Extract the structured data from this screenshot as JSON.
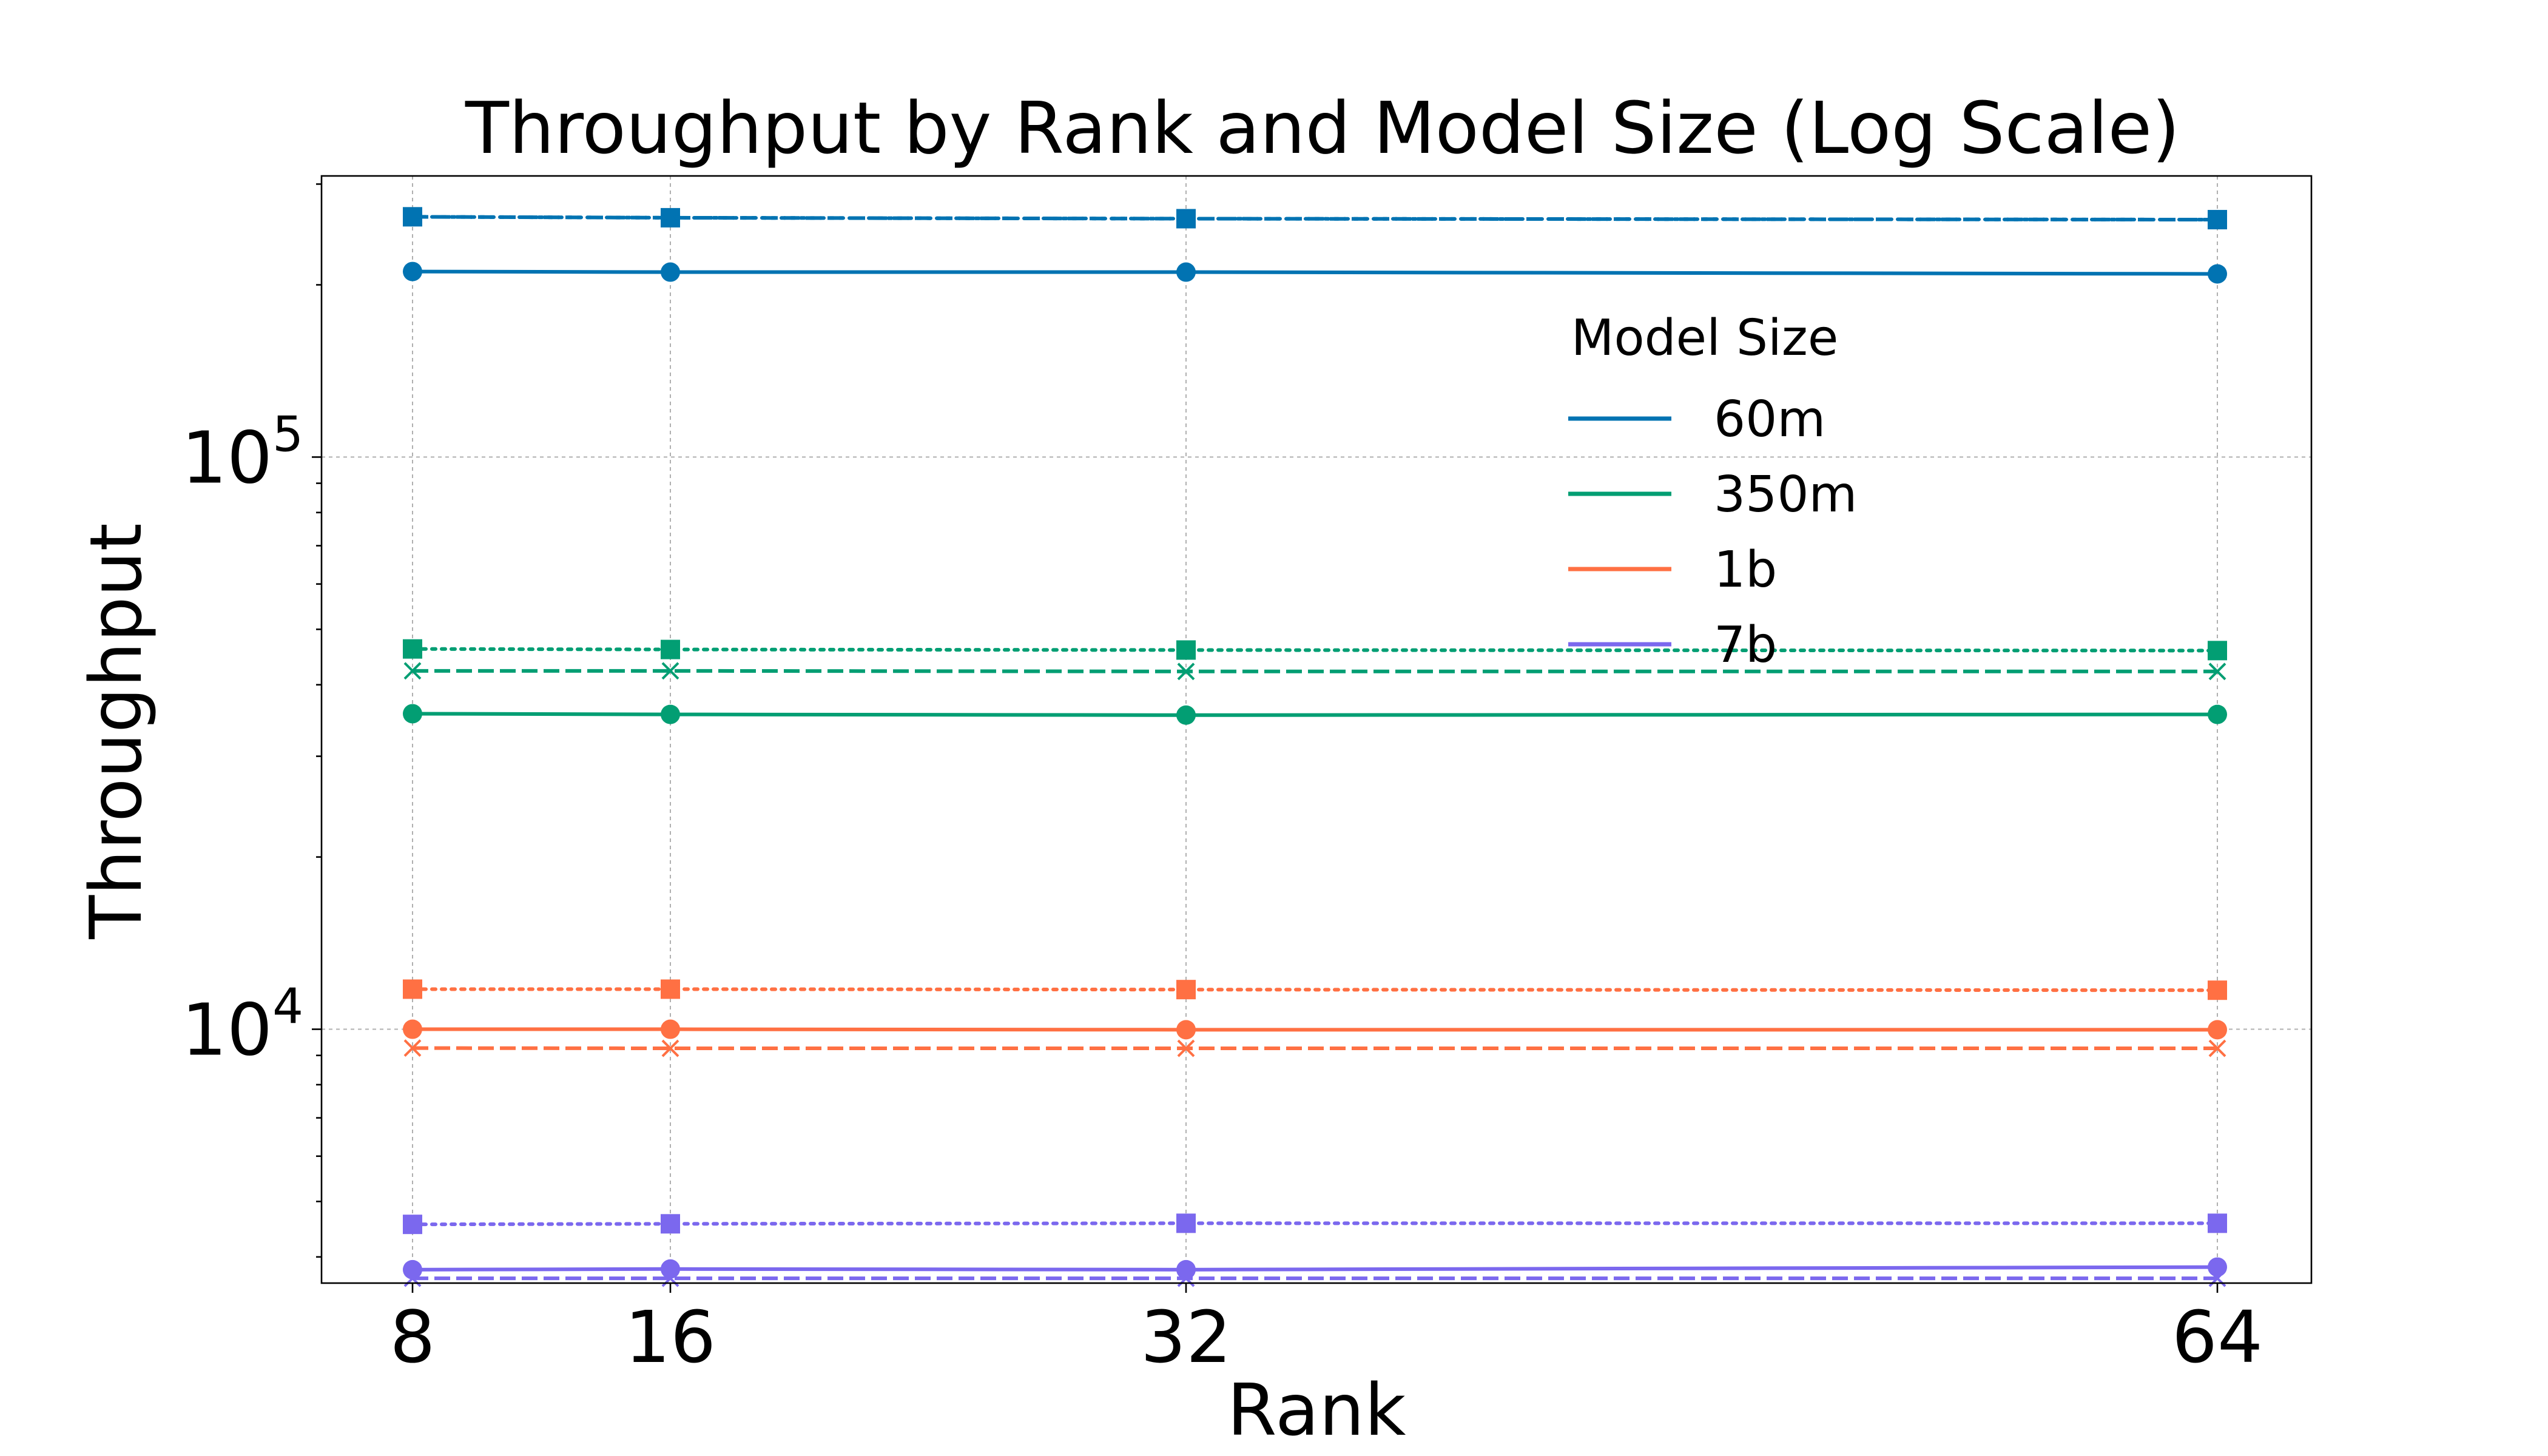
{
  "chart_data": {
    "type": "line",
    "title": "Throughput by Rank and Model Size (Log Scale)",
    "xlabel": "Rank",
    "ylabel": "Throughput",
    "x": [
      8,
      16,
      32,
      64
    ],
    "x_tick_labels": [
      "8",
      "16",
      "32",
      "64"
    ],
    "y_scale": "log",
    "ylim": [
      3600,
      310000
    ],
    "y_ticks": [
      {
        "value": 10000,
        "base": "10",
        "exp": "4"
      },
      {
        "value": 100000,
        "base": "10",
        "exp": "5"
      }
    ],
    "grid": true,
    "legend": {
      "title": "Model Size",
      "placement": "upper right inside",
      "entries": [
        "60m",
        "350m",
        "1b",
        "7b"
      ]
    },
    "groups": [
      {
        "name": "60m",
        "color": "#0173b2",
        "lines": [
          {
            "style": "solid",
            "marker": "circle",
            "values": [
              211000,
              210500,
              210500,
              209000
            ]
          },
          {
            "style": "dotted",
            "marker": "square",
            "values": [
              263000,
              262000,
              261000,
              260000
            ]
          },
          {
            "style": "dashed",
            "marker": "x",
            "values": [
              263000,
              262000,
              261000,
              260000
            ]
          }
        ]
      },
      {
        "name": "350m",
        "color": "#029e73",
        "lines": [
          {
            "style": "solid",
            "marker": "circle",
            "values": [
              35600,
              35500,
              35400,
              35500
            ]
          },
          {
            "style": "dotted",
            "marker": "square",
            "values": [
              46200,
              46100,
              46000,
              45900
            ]
          },
          {
            "style": "dashed",
            "marker": "x",
            "values": [
              42300,
              42300,
              42200,
              42200
            ]
          }
        ]
      },
      {
        "name": "1b",
        "color": "#ff7043",
        "lines": [
          {
            "style": "solid",
            "marker": "circle",
            "values": [
              10000,
              10000,
              9980,
              9980
            ]
          },
          {
            "style": "dotted",
            "marker": "square",
            "values": [
              11750,
              11750,
              11730,
              11700
            ]
          },
          {
            "style": "dashed",
            "marker": "x",
            "values": [
              9270,
              9260,
              9260,
              9260
            ]
          }
        ]
      },
      {
        "name": "7b",
        "color": "#7b68ee",
        "lines": [
          {
            "style": "solid",
            "marker": "circle",
            "values": [
              3800,
              3810,
              3800,
              3840
            ]
          },
          {
            "style": "dotted",
            "marker": "square",
            "values": [
              4560,
              4570,
              4580,
              4580
            ]
          },
          {
            "style": "dashed",
            "marker": "x",
            "values": [
              3670,
              3670,
              3670,
              3670
            ]
          }
        ]
      }
    ]
  }
}
